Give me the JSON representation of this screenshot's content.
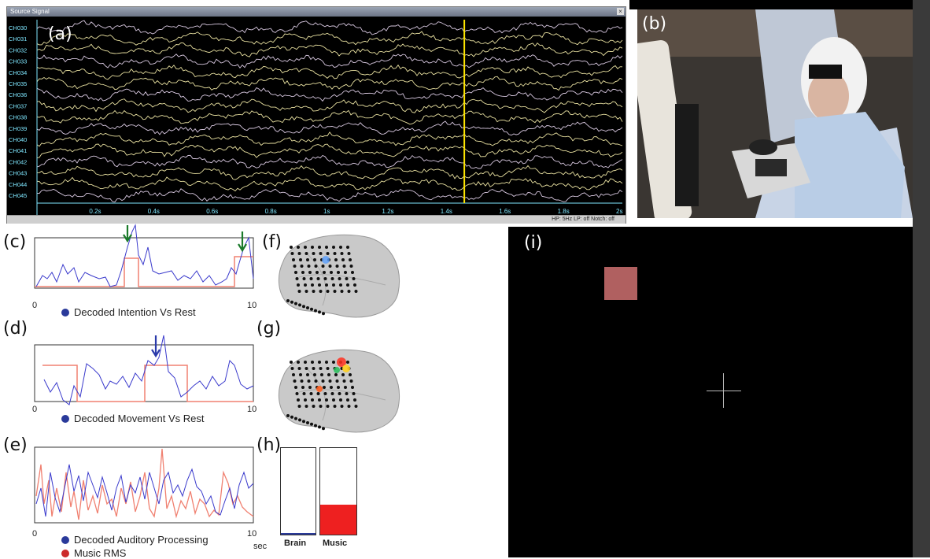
{
  "panels": {
    "a": "(a)",
    "b": "(b)",
    "c": "(c)",
    "d": "(d)",
    "e": "(e)",
    "f": "(f)",
    "g": "(g)",
    "h": "(h)",
    "i": "(i)"
  },
  "eeg": {
    "title": "Source Signal",
    "close_glyph": "×",
    "channels": [
      "CH030",
      "CH031",
      "CH032",
      "CH033",
      "CH034",
      "CH035",
      "CH036",
      "CH037",
      "CH038",
      "CH039",
      "CH040",
      "CH041",
      "CH042",
      "CH043",
      "CH044",
      "CH045"
    ],
    "time_ticks": [
      "0.2s",
      "0.4s",
      "0.6s",
      "0.8s",
      "1s",
      "1.2s",
      "1.4s",
      "1.6s",
      "1.8s",
      "2s"
    ],
    "cursor_time_s": 1.46,
    "status": "HP: 5Hz   LP: off   Notch: off",
    "colors": {
      "trace_a": "#e8e0a0",
      "trace_b": "#d8c8e0",
      "cursor": "#ffe600",
      "axis": "#7fe7ff"
    }
  },
  "plots": {
    "intention": {
      "legend": "Decoded Intention Vs Rest",
      "x_min": "0",
      "x_max": "10"
    },
    "movement": {
      "legend": "Decoded Movement Vs Rest",
      "x_min": "0",
      "x_max": "10"
    },
    "auditory": {
      "legend_1": "Decoded Auditory Processing",
      "legend_2": "Music RMS",
      "x_min": "0",
      "x_max": "10",
      "x_unit": "sec"
    },
    "colors": {
      "decoded": "#3a3acc",
      "reference": "#f08070",
      "legend_blue": "#2a3a9a",
      "legend_red": "#cc2a2a",
      "arrow_green": "#1a7a2a",
      "arrow_blue": "#2a3aaa"
    }
  },
  "bars": {
    "brain_label": "Brain",
    "music_label": "Music",
    "brain_level": 0.01,
    "music_level": 0.35,
    "colors": {
      "music_fill": "#ee2020",
      "brain_fill": "#2a3a9a"
    }
  },
  "stimulus": {
    "square_color": "#b06060",
    "background": "#000000"
  }
}
